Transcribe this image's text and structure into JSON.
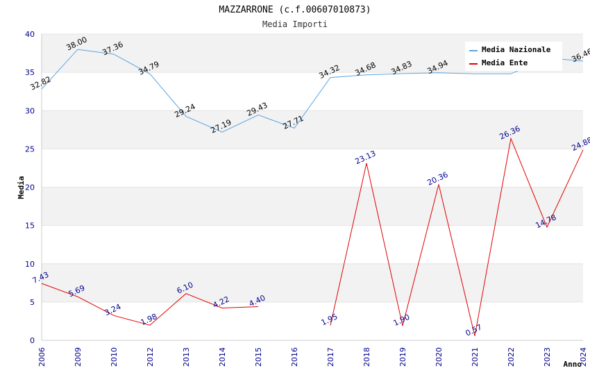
{
  "chart_data": {
    "type": "line",
    "title": "MAZZARRONE (c.f.00607010873)",
    "subtitle": "Media Importi",
    "xlabel": "Anno",
    "ylabel": "Media",
    "ylim": [
      0,
      40
    ],
    "yticks": [
      "0",
      "5",
      "10",
      "15",
      "20",
      "25",
      "30",
      "35",
      "40"
    ],
    "categories": [
      "2006",
      "2009",
      "2010",
      "2012",
      "2013",
      "2014",
      "2015",
      "2016",
      "2017",
      "2018",
      "2019",
      "2020",
      "2021",
      "2022",
      "2023",
      "2024"
    ],
    "grid": true,
    "legend_position": "top-right",
    "series": [
      {
        "name": "Media Nazionale",
        "color": "#5ba3e0",
        "values": [
          32.82,
          38.0,
          37.36,
          34.79,
          29.24,
          27.19,
          29.43,
          27.71,
          34.32,
          34.68,
          34.83,
          34.94,
          34.8,
          34.8,
          36.9,
          36.46
        ],
        "labels": [
          "32.82",
          "38.00",
          "37.36",
          "34.79",
          "29.24",
          "27.19",
          "29.43",
          "27.71",
          "34.32",
          "34.68",
          "34.83",
          "34.94",
          "",
          "",
          "",
          "36.46"
        ]
      },
      {
        "name": "Media Ente",
        "color": "#e00000",
        "values": [
          7.43,
          5.69,
          3.24,
          1.98,
          6.1,
          4.22,
          4.4,
          null,
          1.95,
          23.13,
          1.9,
          20.36,
          0.57,
          26.36,
          14.78,
          24.88
        ],
        "labels": [
          "7.43",
          "5.69",
          "3.24",
          "1.98",
          "6.10",
          "4.22",
          "4.40",
          "",
          "1.95",
          "23.13",
          "1.90",
          "20.36",
          "0.57",
          "26.36",
          "14.78",
          "24.88"
        ]
      }
    ]
  }
}
